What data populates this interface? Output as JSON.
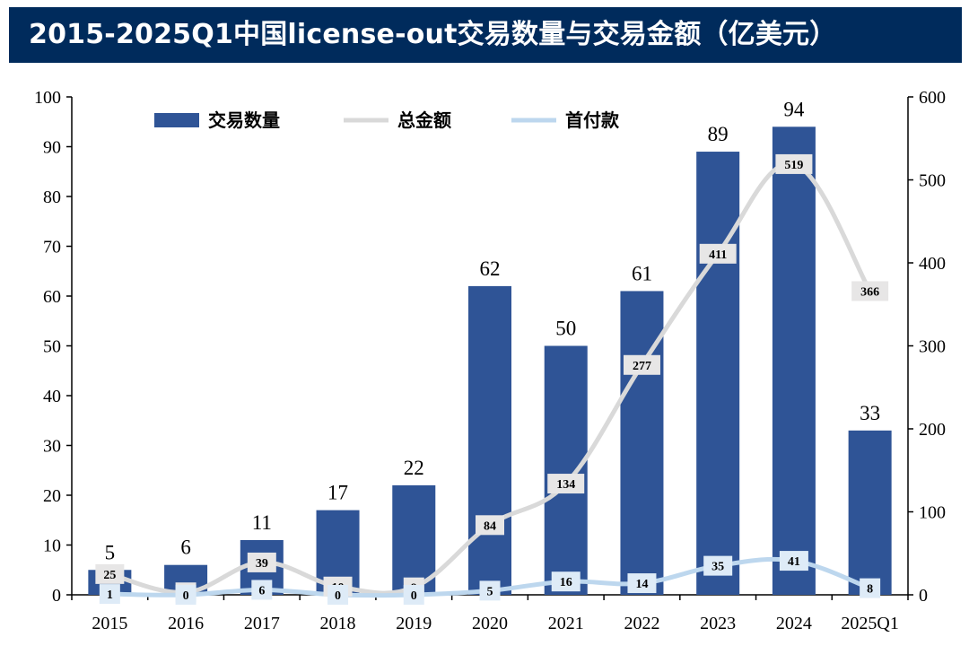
{
  "title": "2015-2025Q1中国license-out交易数量与交易金额（亿美元）",
  "chart_data": {
    "type": "bar",
    "categories": [
      "2015",
      "2016",
      "2017",
      "2018",
      "2019",
      "2020",
      "2021",
      "2022",
      "2023",
      "2024",
      "2025Q1"
    ],
    "series": [
      {
        "name": "交易数量",
        "type": "bar",
        "axis": "left",
        "values": [
          5,
          6,
          11,
          17,
          22,
          62,
          50,
          61,
          89,
          94,
          33
        ]
      },
      {
        "name": "总金额",
        "type": "line",
        "axis": "right",
        "values": [
          25,
          3,
          39,
          10,
          9,
          84,
          134,
          277,
          411,
          519,
          366
        ]
      },
      {
        "name": "首付款",
        "type": "line",
        "axis": "right",
        "values": [
          1,
          0,
          6,
          0,
          0,
          5,
          16,
          14,
          35,
          41,
          8
        ]
      }
    ],
    "ylim_left": [
      0,
      100
    ],
    "yticks_left": [
      0,
      10,
      20,
      30,
      40,
      50,
      60,
      70,
      80,
      90,
      100
    ],
    "ylim_right": [
      0,
      600
    ],
    "yticks_right": [
      0,
      100,
      200,
      300,
      400,
      500,
      600
    ],
    "grid": false,
    "legend_position": "top",
    "colors": {
      "bar": "#2f5496",
      "total_line": "#d9d9d9",
      "upfront_line": "#bdd7ee",
      "title_bg": "#002b5c"
    }
  }
}
